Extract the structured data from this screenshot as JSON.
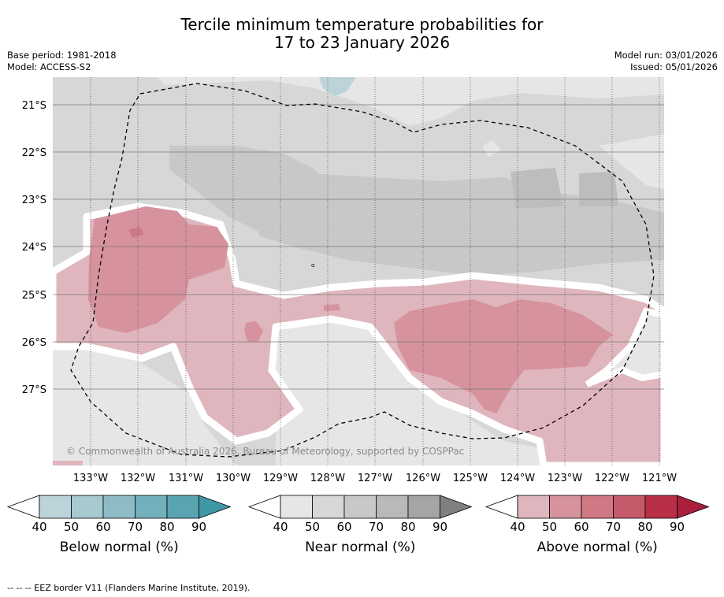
{
  "title": {
    "line1": "Tercile minimum temperature probabilities for",
    "line2": "17 to 23 January 2026"
  },
  "meta": {
    "base_period": "Base period: 1981-2018",
    "model": "Model: ACCESS-S2",
    "model_run": "Model run: 03/01/2026",
    "issued": "Issued: 05/01/2026"
  },
  "map": {
    "lat_labels": [
      "21°S",
      "22°S",
      "23°S",
      "24°S",
      "25°S",
      "26°S",
      "27°S"
    ],
    "lon_labels": [
      "133°W",
      "132°W",
      "131°W",
      "130°W",
      "129°W",
      "128°W",
      "127°W",
      "126°W",
      "125°W",
      "124°W",
      "123°W",
      "122°W",
      "121°W"
    ],
    "copyright": "© Commonwealth of Australia 2026, Bureau of Meteorology, supported by COSPPac"
  },
  "colorbars": [
    {
      "label": "Below normal (%)",
      "ticks": [
        "40",
        "50",
        "60",
        "70",
        "80",
        "90"
      ],
      "colors": [
        "#ffffff",
        "#bdd3da",
        "#a7c9d0",
        "#8ebcc6",
        "#74b0bc",
        "#5aa4b1",
        "#3f98a6"
      ]
    },
    {
      "label": "Near normal (%)",
      "ticks": [
        "40",
        "50",
        "60",
        "70",
        "80",
        "90"
      ],
      "colors": [
        "#ffffff",
        "#e6e6e6",
        "#d7d7d7",
        "#c8c8c8",
        "#b9b9b9",
        "#a5a5a5",
        "#808080"
      ]
    },
    {
      "label": "Above normal (%)",
      "ticks": [
        "40",
        "50",
        "60",
        "70",
        "80",
        "90"
      ],
      "colors": [
        "#ffffff",
        "#dfb6bd",
        "#d6929d",
        "#cf7985",
        "#c55a6a",
        "#b92f48",
        "#a91f3c"
      ]
    }
  ],
  "footer": "--  --  -- EEZ border V11 (Flanders Marine Institute, 2019)."
}
